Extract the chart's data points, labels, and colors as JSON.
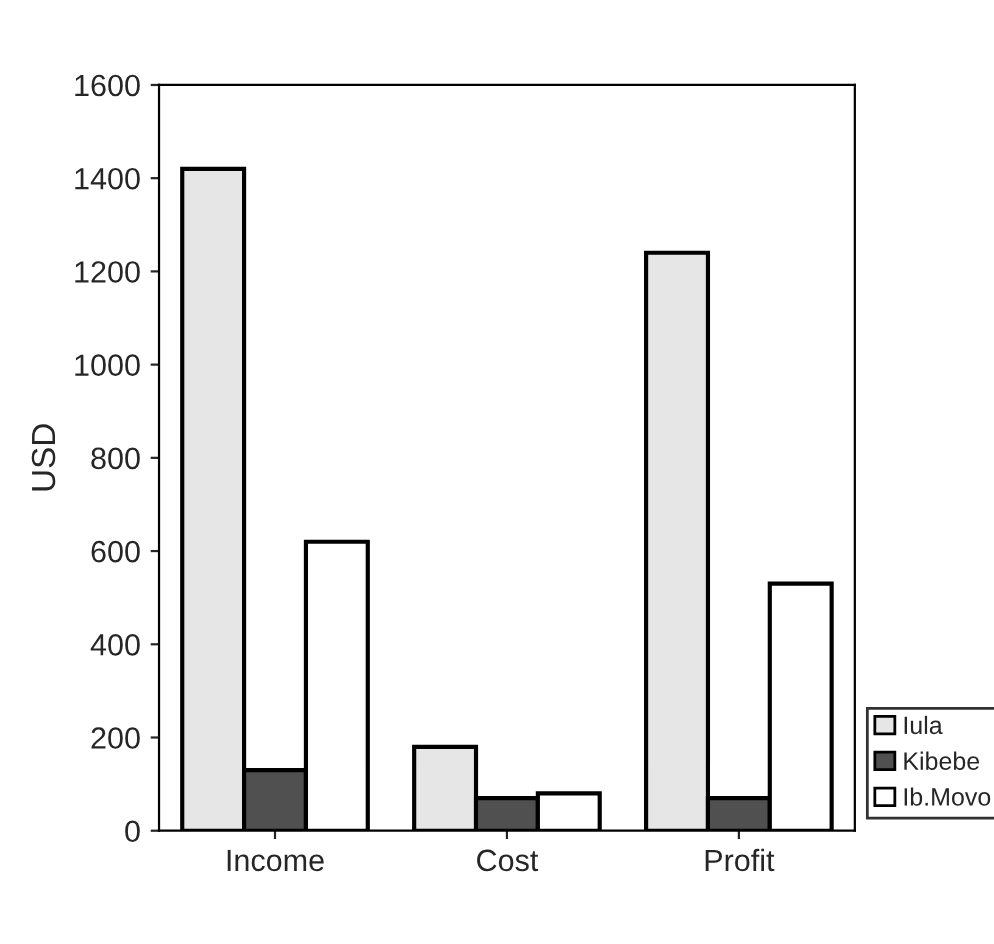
{
  "chart_data": {
    "type": "bar",
    "ylabel": "USD",
    "categories": [
      "Income",
      "Cost",
      "Profit"
    ],
    "series": [
      {
        "name": "Iula",
        "color": "#e6e6e6",
        "values": [
          1420,
          180,
          1240
        ]
      },
      {
        "name": "Kibebe",
        "color": "#505050",
        "values": [
          130,
          70,
          70
        ]
      },
      {
        "name": "Ib.Movo",
        "color": "#ffffff",
        "values": [
          620,
          80,
          530
        ]
      }
    ],
    "ylim": [
      0,
      1600
    ],
    "yticks": [
      0,
      200,
      400,
      600,
      800,
      1000,
      1200,
      1400,
      1600
    ],
    "grid": false,
    "legend": "bottom right"
  }
}
